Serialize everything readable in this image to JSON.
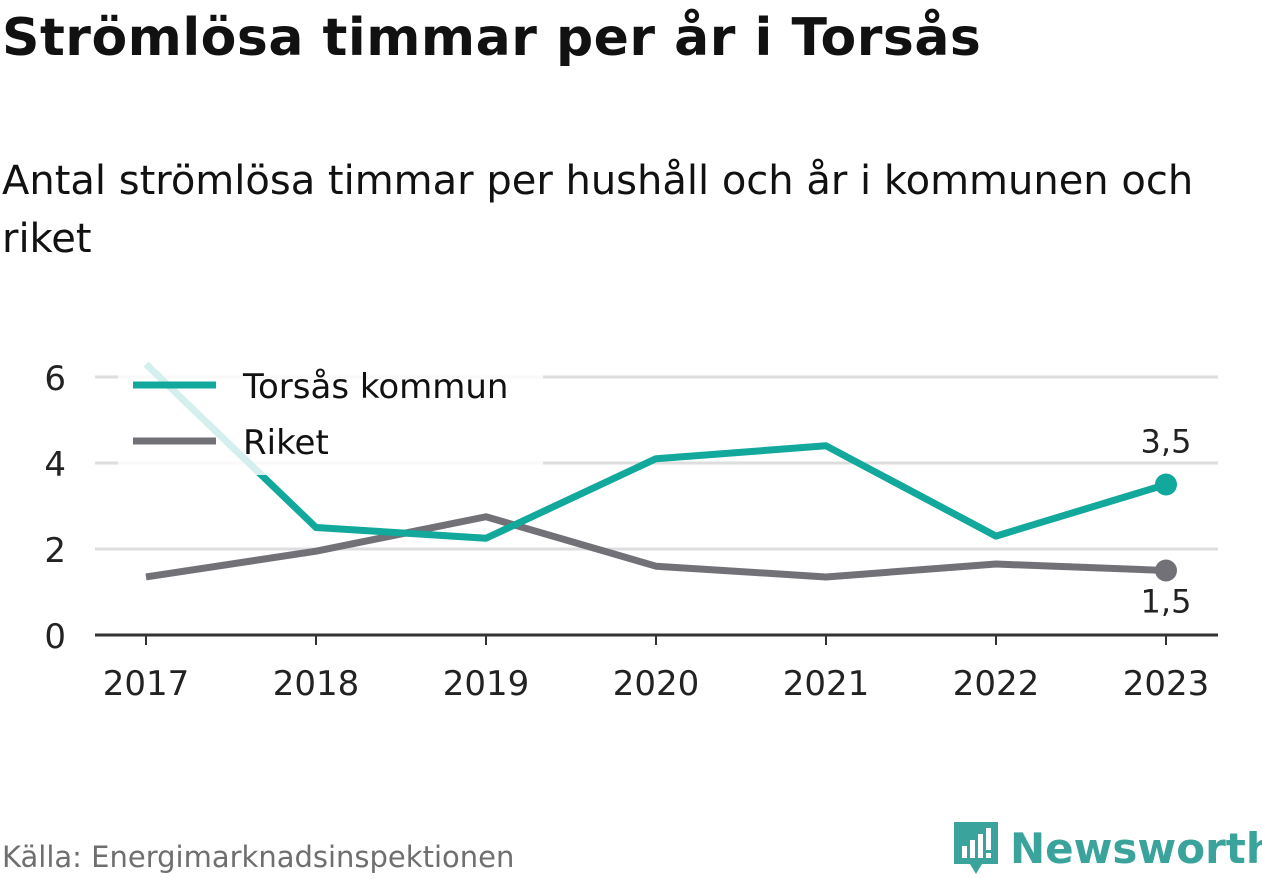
{
  "title": "Strömlösa timmar per år i Torsås",
  "subtitle": "Antal strömlösa timmar per hushåll och år i kommunen och riket",
  "source": "Källa: Energimarknadsinspektionen",
  "brand": {
    "name": "Newsworthy",
    "logo_icon": "newsworthy-logo-icon",
    "color": "#3aa39b"
  },
  "chart_data": {
    "type": "line",
    "x": [
      "2017",
      "2018",
      "2019",
      "2020",
      "2021",
      "2022",
      "2023"
    ],
    "series": [
      {
        "name": "Torsås kommun",
        "color": "#12a89c",
        "values": [
          6.3,
          2.5,
          2.25,
          4.1,
          4.4,
          2.3,
          3.5
        ],
        "end_label": "3,5"
      },
      {
        "name": "Riket",
        "color": "#727178",
        "values": [
          1.35,
          1.95,
          2.75,
          1.6,
          1.35,
          1.65,
          1.5
        ],
        "end_label": "1,5"
      }
    ],
    "y_ticks": [
      "0",
      "2",
      "4",
      "6"
    ],
    "ylim": [
      0,
      6.6
    ],
    "grid": true,
    "legend": "top-left"
  }
}
